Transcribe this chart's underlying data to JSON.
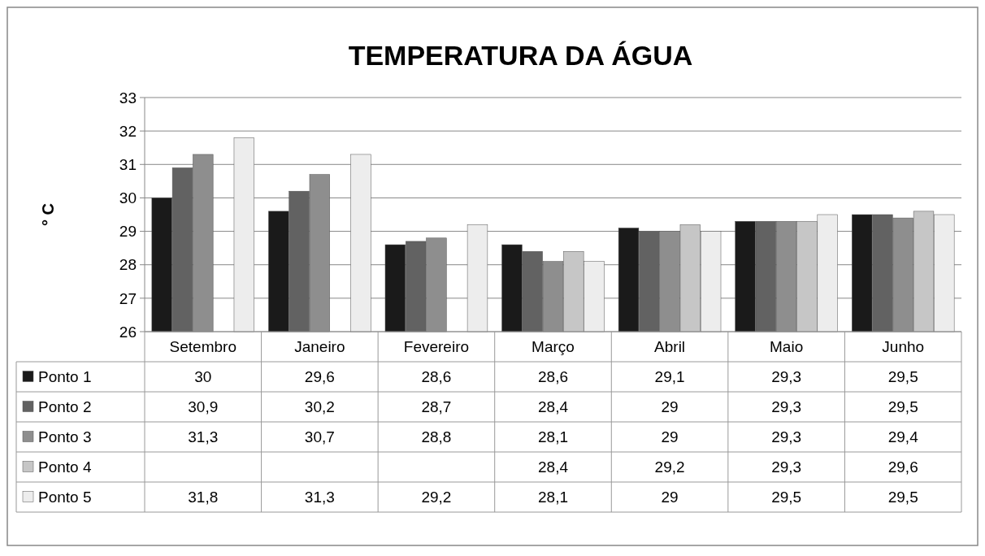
{
  "chart_data": {
    "type": "bar",
    "title": "TEMPERATURA DA ÁGUA",
    "ylabel": "° C",
    "categories": [
      "Setembro",
      "Janeiro",
      "Fevereiro",
      "Março",
      "Abril",
      "Maio",
      "Junho"
    ],
    "ylim": [
      26,
      33
    ],
    "yticks": [
      26,
      27,
      28,
      29,
      30,
      31,
      32,
      33
    ],
    "grid": "y",
    "legend": "bottom",
    "series": [
      {
        "name": "Ponto 1",
        "color": "#1a1a1a",
        "values": [
          30,
          29.6,
          28.6,
          28.6,
          29.1,
          29.3,
          29.5
        ],
        "value_labels": [
          "30",
          "29,6",
          "28,6",
          "28,6",
          "29,1",
          "29,3",
          "29,5"
        ]
      },
      {
        "name": "Ponto 2",
        "color": "#626262",
        "values": [
          30.9,
          30.2,
          28.7,
          28.4,
          29,
          29.3,
          29.5
        ],
        "value_labels": [
          "30,9",
          "30,2",
          "28,7",
          "28,4",
          "29",
          "29,3",
          "29,5"
        ]
      },
      {
        "name": "Ponto 3",
        "color": "#8e8e8e",
        "values": [
          31.3,
          30.7,
          28.8,
          28.1,
          29,
          29.3,
          29.4
        ],
        "value_labels": [
          "31,3",
          "30,7",
          "28,8",
          "28,1",
          "29",
          "29,3",
          "29,4"
        ]
      },
      {
        "name": "Ponto 4",
        "color": "#c6c6c6",
        "values": [
          null,
          null,
          null,
          28.4,
          29.2,
          29.3,
          29.6
        ],
        "value_labels": [
          null,
          null,
          null,
          "28,4",
          "29,2",
          "29,3",
          "29,6"
        ]
      },
      {
        "name": "Ponto 5",
        "color": "#ededed",
        "values": [
          31.8,
          31.3,
          29.2,
          28.1,
          29,
          29.5,
          29.5
        ],
        "value_labels": [
          "31,8",
          "31,3",
          "29,2",
          "28,1",
          "29",
          "29,5",
          "29,5"
        ]
      }
    ]
  }
}
